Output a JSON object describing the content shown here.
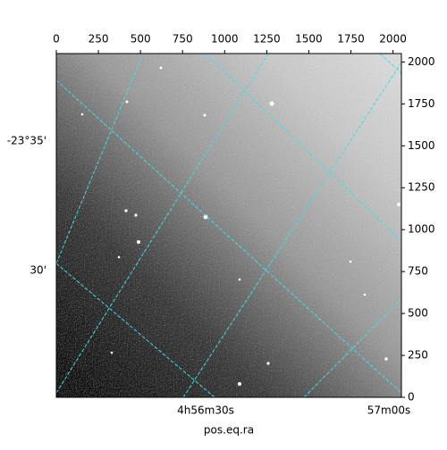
{
  "chart_data": {
    "type": "image",
    "xlabel": "pos.eq.ra",
    "xlim": [
      0,
      2050
    ],
    "xticks": [
      0,
      250,
      500,
      750,
      1000,
      1250,
      1500,
      1750,
      2000
    ],
    "ylim": [
      0,
      2050
    ],
    "yticks": [
      0,
      250,
      500,
      750,
      1000,
      1250,
      1500,
      1750,
      2000
    ],
    "ra_labels": [
      "4h56m30s",
      "57m00s"
    ],
    "dec_labels": [
      "-23°35'",
      "30'"
    ],
    "grid_color": "#3ee0e0"
  }
}
